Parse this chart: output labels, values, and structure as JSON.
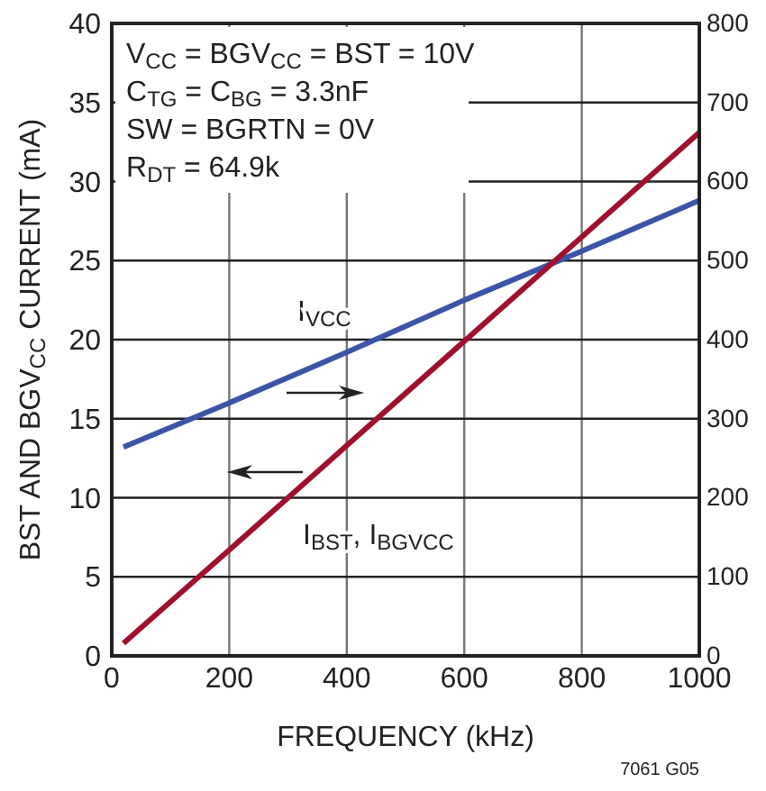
{
  "chart_data": {
    "type": "line",
    "xlabel": "FREQUENCY (kHz)",
    "ylabel": "BST AND BGV$_{CC}$ CURRENT (mA)",
    "x": [
      20,
      200,
      400,
      600,
      800,
      1000
    ],
    "xlim": [
      0,
      1000
    ],
    "xticks": [
      0,
      200,
      400,
      600,
      800,
      1000
    ],
    "ylim": [
      0,
      40
    ],
    "yticks": [
      0,
      5,
      10,
      15,
      20,
      25,
      30,
      35,
      40
    ],
    "y2lim": [
      0,
      800
    ],
    "y2ticks": [
      0,
      100,
      200,
      300,
      400,
      500,
      600,
      700,
      800
    ],
    "grid": true,
    "line_style": "solid",
    "marker": "none",
    "series": [
      {
        "name": "I$_{VCC}$",
        "color": "#3b55a6",
        "axis": "y2",
        "values": [
          264,
          320,
          384,
          450,
          512,
          576
        ]
      },
      {
        "name": "I$_{BST}$, I$_{BGVCC}$",
        "color": "#a0102e",
        "values": [
          0.8,
          6.7,
          13.3,
          19.9,
          26.5,
          33.1
        ]
      }
    ],
    "annotations": [
      "V$_{CC}$ = BGV$_{CC}$ = BST = 10V",
      "C$_{TG}$ = C$_{BG}$ = 3.3nF",
      "SW = BGRTN = 0V",
      "R$_{DT}$ = 64.9k",
      "7061 G05"
    ]
  }
}
